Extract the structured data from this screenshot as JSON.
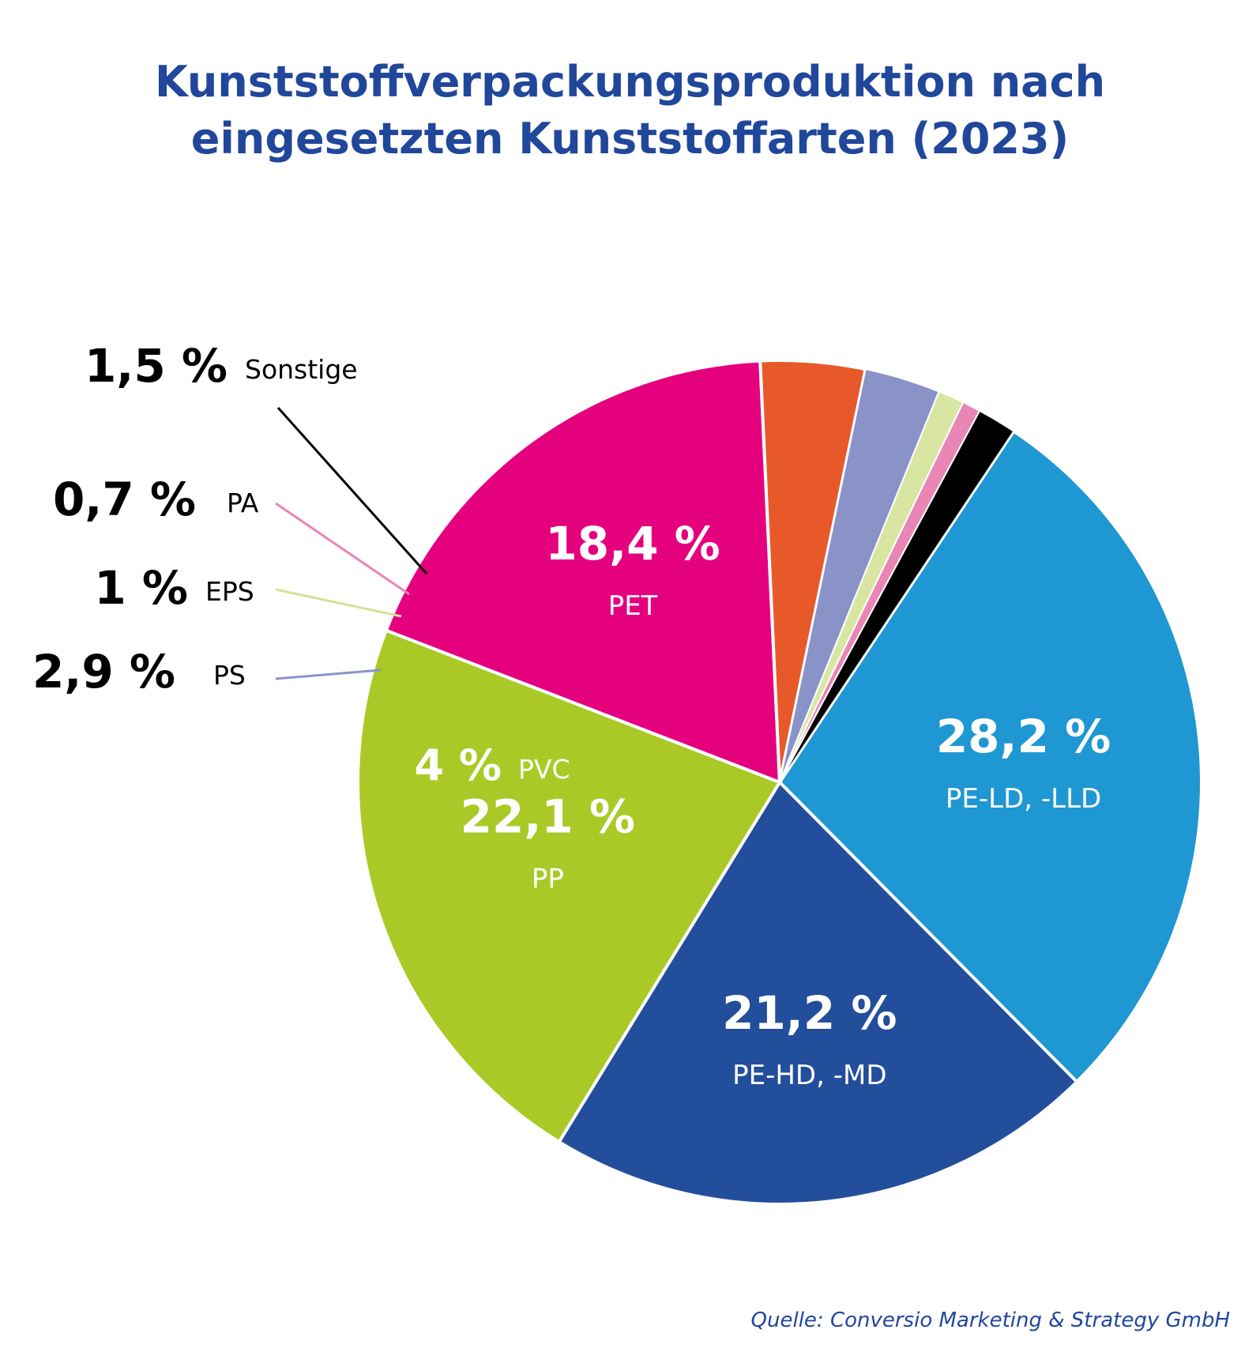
{
  "title_line1": "Kunststoffverpackungsproduktion nach",
  "title_line2": "eingesetzten Kunststoffarten (2023)",
  "source": "Quelle: Conversio Marketing & Strategy GmbH",
  "chart_data": {
    "type": "pie",
    "unit": "%",
    "slices": [
      {
        "label": "PE-LD, -LLD",
        "value": 28.2,
        "value_label": "28,2 %",
        "color": "#1f97d3"
      },
      {
        "label": "PE-HD, -MD",
        "value": 21.2,
        "value_label": "21,2 %",
        "color": "#224e9b"
      },
      {
        "label": "PP",
        "value": 22.1,
        "value_label": "22,1 %",
        "color": "#aac927"
      },
      {
        "label": "PET",
        "value": 18.4,
        "value_label": "18,4 %",
        "color": "#e5007e"
      },
      {
        "label": "PVC",
        "value": 4.0,
        "value_label": "4 %",
        "color": "#e8592a"
      },
      {
        "label": "PS",
        "value": 2.9,
        "value_label": "2,9 %",
        "color": "#8a93c8"
      },
      {
        "label": "EPS",
        "value": 1.0,
        "value_label": "1 %",
        "color": "#d8e6a2"
      },
      {
        "label": "PA",
        "value": 0.7,
        "value_label": "0,7 %",
        "color": "#e986b6"
      },
      {
        "label": "Sonstige",
        "value": 1.5,
        "value_label": "1,5 %",
        "color": "#000000"
      }
    ]
  }
}
